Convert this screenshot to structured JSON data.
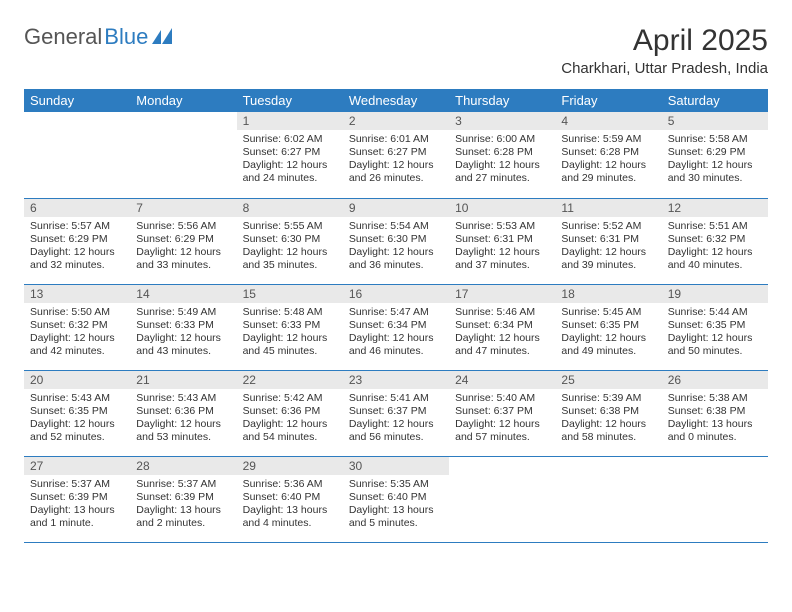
{
  "logo": {
    "text1": "General",
    "text2": "Blue"
  },
  "title": "April 2025",
  "subtitle": "Charkhari, Uttar Pradesh, India",
  "colors": {
    "header_bg": "#2d7cc0",
    "header_text": "#ffffff",
    "daynum_bg": "#e9e9e9",
    "row_border": "#2d7cc0",
    "page_bg": "#ffffff",
    "body_text": "#333333"
  },
  "typography": {
    "title_fontsize": 30,
    "subtitle_fontsize": 15,
    "header_fontsize": 13,
    "daynum_fontsize": 12,
    "cell_fontsize": 10.5
  },
  "day_headers": [
    "Sunday",
    "Monday",
    "Tuesday",
    "Wednesday",
    "Thursday",
    "Friday",
    "Saturday"
  ],
  "weeks": [
    [
      {
        "n": "",
        "sunrise": "",
        "sunset": "",
        "daylight": ""
      },
      {
        "n": "",
        "sunrise": "",
        "sunset": "",
        "daylight": ""
      },
      {
        "n": "1",
        "sunrise": "Sunrise: 6:02 AM",
        "sunset": "Sunset: 6:27 PM",
        "daylight": "Daylight: 12 hours and 24 minutes."
      },
      {
        "n": "2",
        "sunrise": "Sunrise: 6:01 AM",
        "sunset": "Sunset: 6:27 PM",
        "daylight": "Daylight: 12 hours and 26 minutes."
      },
      {
        "n": "3",
        "sunrise": "Sunrise: 6:00 AM",
        "sunset": "Sunset: 6:28 PM",
        "daylight": "Daylight: 12 hours and 27 minutes."
      },
      {
        "n": "4",
        "sunrise": "Sunrise: 5:59 AM",
        "sunset": "Sunset: 6:28 PM",
        "daylight": "Daylight: 12 hours and 29 minutes."
      },
      {
        "n": "5",
        "sunrise": "Sunrise: 5:58 AM",
        "sunset": "Sunset: 6:29 PM",
        "daylight": "Daylight: 12 hours and 30 minutes."
      }
    ],
    [
      {
        "n": "6",
        "sunrise": "Sunrise: 5:57 AM",
        "sunset": "Sunset: 6:29 PM",
        "daylight": "Daylight: 12 hours and 32 minutes."
      },
      {
        "n": "7",
        "sunrise": "Sunrise: 5:56 AM",
        "sunset": "Sunset: 6:29 PM",
        "daylight": "Daylight: 12 hours and 33 minutes."
      },
      {
        "n": "8",
        "sunrise": "Sunrise: 5:55 AM",
        "sunset": "Sunset: 6:30 PM",
        "daylight": "Daylight: 12 hours and 35 minutes."
      },
      {
        "n": "9",
        "sunrise": "Sunrise: 5:54 AM",
        "sunset": "Sunset: 6:30 PM",
        "daylight": "Daylight: 12 hours and 36 minutes."
      },
      {
        "n": "10",
        "sunrise": "Sunrise: 5:53 AM",
        "sunset": "Sunset: 6:31 PM",
        "daylight": "Daylight: 12 hours and 37 minutes."
      },
      {
        "n": "11",
        "sunrise": "Sunrise: 5:52 AM",
        "sunset": "Sunset: 6:31 PM",
        "daylight": "Daylight: 12 hours and 39 minutes."
      },
      {
        "n": "12",
        "sunrise": "Sunrise: 5:51 AM",
        "sunset": "Sunset: 6:32 PM",
        "daylight": "Daylight: 12 hours and 40 minutes."
      }
    ],
    [
      {
        "n": "13",
        "sunrise": "Sunrise: 5:50 AM",
        "sunset": "Sunset: 6:32 PM",
        "daylight": "Daylight: 12 hours and 42 minutes."
      },
      {
        "n": "14",
        "sunrise": "Sunrise: 5:49 AM",
        "sunset": "Sunset: 6:33 PM",
        "daylight": "Daylight: 12 hours and 43 minutes."
      },
      {
        "n": "15",
        "sunrise": "Sunrise: 5:48 AM",
        "sunset": "Sunset: 6:33 PM",
        "daylight": "Daylight: 12 hours and 45 minutes."
      },
      {
        "n": "16",
        "sunrise": "Sunrise: 5:47 AM",
        "sunset": "Sunset: 6:34 PM",
        "daylight": "Daylight: 12 hours and 46 minutes."
      },
      {
        "n": "17",
        "sunrise": "Sunrise: 5:46 AM",
        "sunset": "Sunset: 6:34 PM",
        "daylight": "Daylight: 12 hours and 47 minutes."
      },
      {
        "n": "18",
        "sunrise": "Sunrise: 5:45 AM",
        "sunset": "Sunset: 6:35 PM",
        "daylight": "Daylight: 12 hours and 49 minutes."
      },
      {
        "n": "19",
        "sunrise": "Sunrise: 5:44 AM",
        "sunset": "Sunset: 6:35 PM",
        "daylight": "Daylight: 12 hours and 50 minutes."
      }
    ],
    [
      {
        "n": "20",
        "sunrise": "Sunrise: 5:43 AM",
        "sunset": "Sunset: 6:35 PM",
        "daylight": "Daylight: 12 hours and 52 minutes."
      },
      {
        "n": "21",
        "sunrise": "Sunrise: 5:43 AM",
        "sunset": "Sunset: 6:36 PM",
        "daylight": "Daylight: 12 hours and 53 minutes."
      },
      {
        "n": "22",
        "sunrise": "Sunrise: 5:42 AM",
        "sunset": "Sunset: 6:36 PM",
        "daylight": "Daylight: 12 hours and 54 minutes."
      },
      {
        "n": "23",
        "sunrise": "Sunrise: 5:41 AM",
        "sunset": "Sunset: 6:37 PM",
        "daylight": "Daylight: 12 hours and 56 minutes."
      },
      {
        "n": "24",
        "sunrise": "Sunrise: 5:40 AM",
        "sunset": "Sunset: 6:37 PM",
        "daylight": "Daylight: 12 hours and 57 minutes."
      },
      {
        "n": "25",
        "sunrise": "Sunrise: 5:39 AM",
        "sunset": "Sunset: 6:38 PM",
        "daylight": "Daylight: 12 hours and 58 minutes."
      },
      {
        "n": "26",
        "sunrise": "Sunrise: 5:38 AM",
        "sunset": "Sunset: 6:38 PM",
        "daylight": "Daylight: 13 hours and 0 minutes."
      }
    ],
    [
      {
        "n": "27",
        "sunrise": "Sunrise: 5:37 AM",
        "sunset": "Sunset: 6:39 PM",
        "daylight": "Daylight: 13 hours and 1 minute."
      },
      {
        "n": "28",
        "sunrise": "Sunrise: 5:37 AM",
        "sunset": "Sunset: 6:39 PM",
        "daylight": "Daylight: 13 hours and 2 minutes."
      },
      {
        "n": "29",
        "sunrise": "Sunrise: 5:36 AM",
        "sunset": "Sunset: 6:40 PM",
        "daylight": "Daylight: 13 hours and 4 minutes."
      },
      {
        "n": "30",
        "sunrise": "Sunrise: 5:35 AM",
        "sunset": "Sunset: 6:40 PM",
        "daylight": "Daylight: 13 hours and 5 minutes."
      },
      {
        "n": "",
        "sunrise": "",
        "sunset": "",
        "daylight": ""
      },
      {
        "n": "",
        "sunrise": "",
        "sunset": "",
        "daylight": ""
      },
      {
        "n": "",
        "sunrise": "",
        "sunset": "",
        "daylight": ""
      }
    ]
  ]
}
